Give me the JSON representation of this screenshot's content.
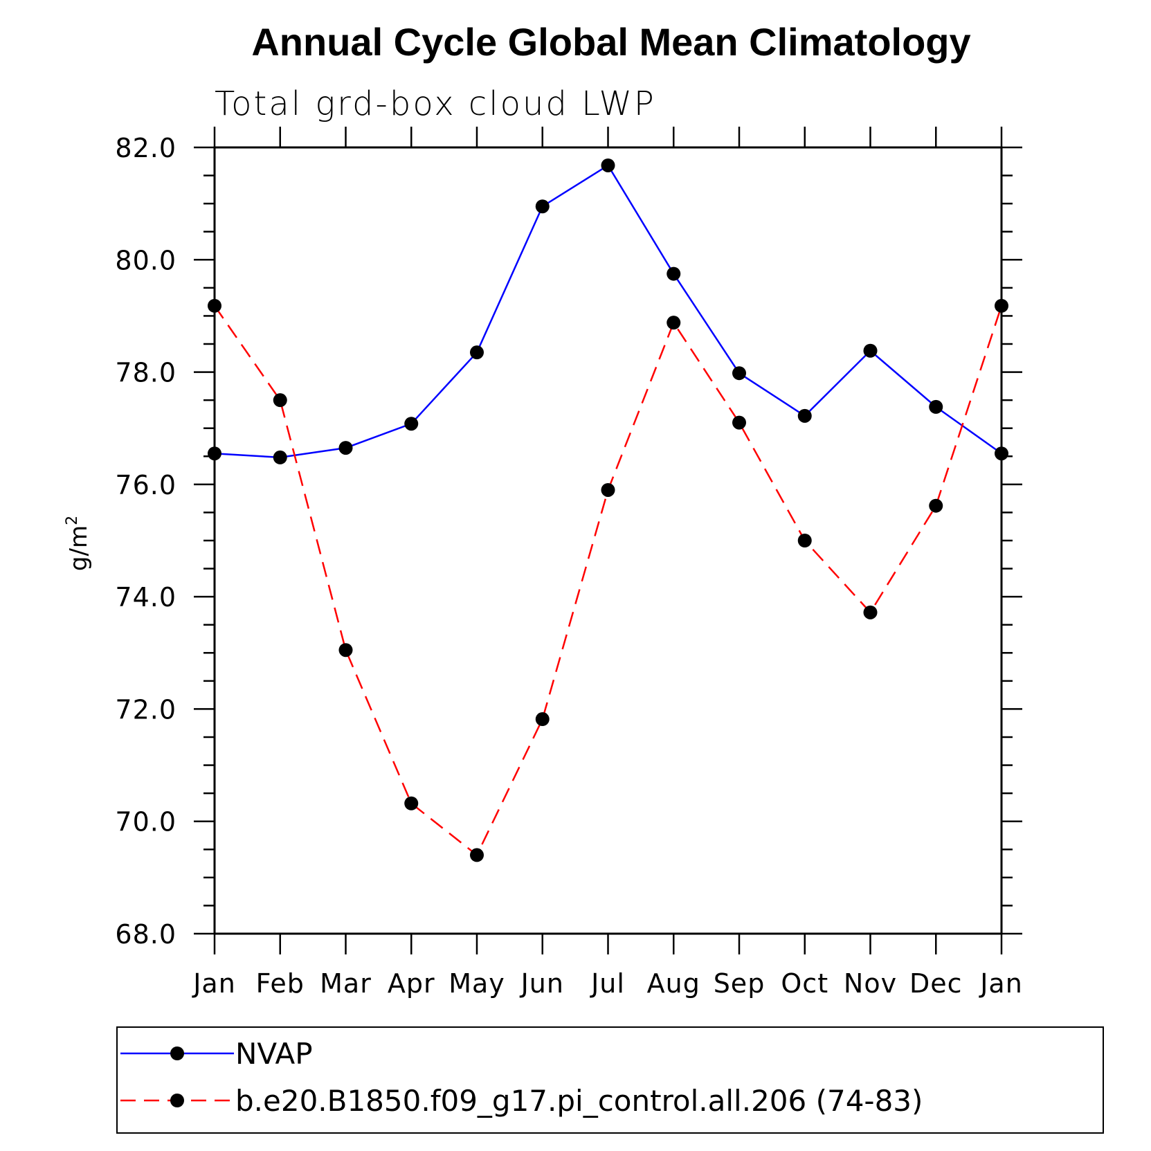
{
  "chart_data": {
    "type": "line",
    "title": "Annual Cycle Global Mean Climatology",
    "subtitle": "Total grd-box cloud LWP",
    "ylabel": "g/m",
    "ylabel_sup": "2",
    "xlabel": "",
    "ylim": [
      68.0,
      82.0
    ],
    "y_ticks": [
      "68.0",
      "70.0",
      "72.0",
      "74.0",
      "76.0",
      "78.0",
      "80.0",
      "82.0"
    ],
    "categories": [
      "Jan",
      "Feb",
      "Mar",
      "Apr",
      "May",
      "Jun",
      "Jul",
      "Aug",
      "Sep",
      "Oct",
      "Nov",
      "Dec",
      "Jan"
    ],
    "series": [
      {
        "name": "NVAP",
        "color": "#0000ff",
        "dash": "solid",
        "values": [
          76.55,
          76.48,
          76.65,
          77.08,
          78.35,
          80.95,
          81.68,
          79.75,
          77.98,
          77.22,
          78.38,
          77.38,
          76.55
        ]
      },
      {
        "name": "b.e20.B1850.f09_g17.pi_control.all.206 (74-83)",
        "color": "#ff0000",
        "dash": "dashed",
        "values": [
          79.18,
          77.5,
          73.05,
          70.32,
          69.4,
          71.82,
          75.9,
          78.88,
          77.1,
          75.0,
          73.72,
          75.62,
          79.18
        ]
      }
    ],
    "grid": false,
    "legend_position": "bottom"
  }
}
